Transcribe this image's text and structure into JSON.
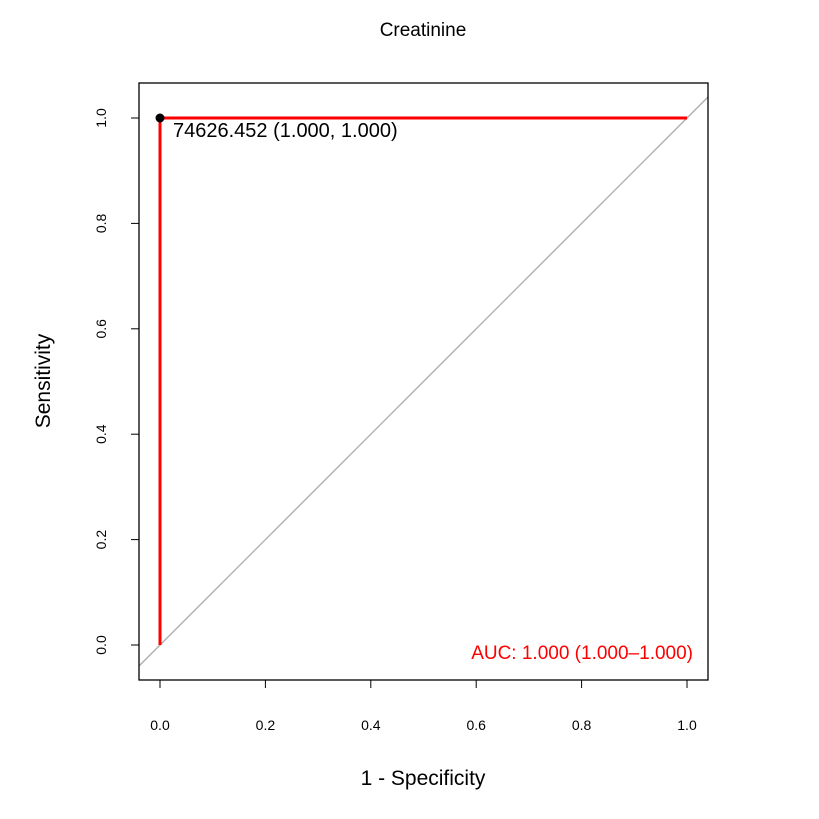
{
  "chart_data": {
    "type": "line",
    "title": "Creatinine",
    "xlabel": "1 - Specificity",
    "ylabel": "Sensitivity",
    "xlim": [
      0.0,
      1.0
    ],
    "ylim": [
      0.0,
      1.0
    ],
    "x_ticks": [
      "0.0",
      "0.2",
      "0.4",
      "0.6",
      "0.8",
      "1.0"
    ],
    "y_ticks": [
      "0.0",
      "0.2",
      "0.4",
      "0.6",
      "0.8",
      "1.0"
    ],
    "grid": false,
    "series": [
      {
        "color": "#ff0000",
        "x": [
          0.0,
          0.0,
          1.0
        ],
        "y": [
          0.0,
          1.0,
          1.0
        ]
      }
    ],
    "reference_line": {
      "color": "#aaaaaa",
      "x": [
        0,
        1
      ],
      "y": [
        0,
        1
      ]
    },
    "highlight_point": {
      "x": 0.0,
      "y": 1.0,
      "label": "74626.452 (1.000, 1.000)"
    },
    "auc_label": "AUC: 1.000 (1.000–1.000)",
    "auc_color": "#ff0000"
  }
}
